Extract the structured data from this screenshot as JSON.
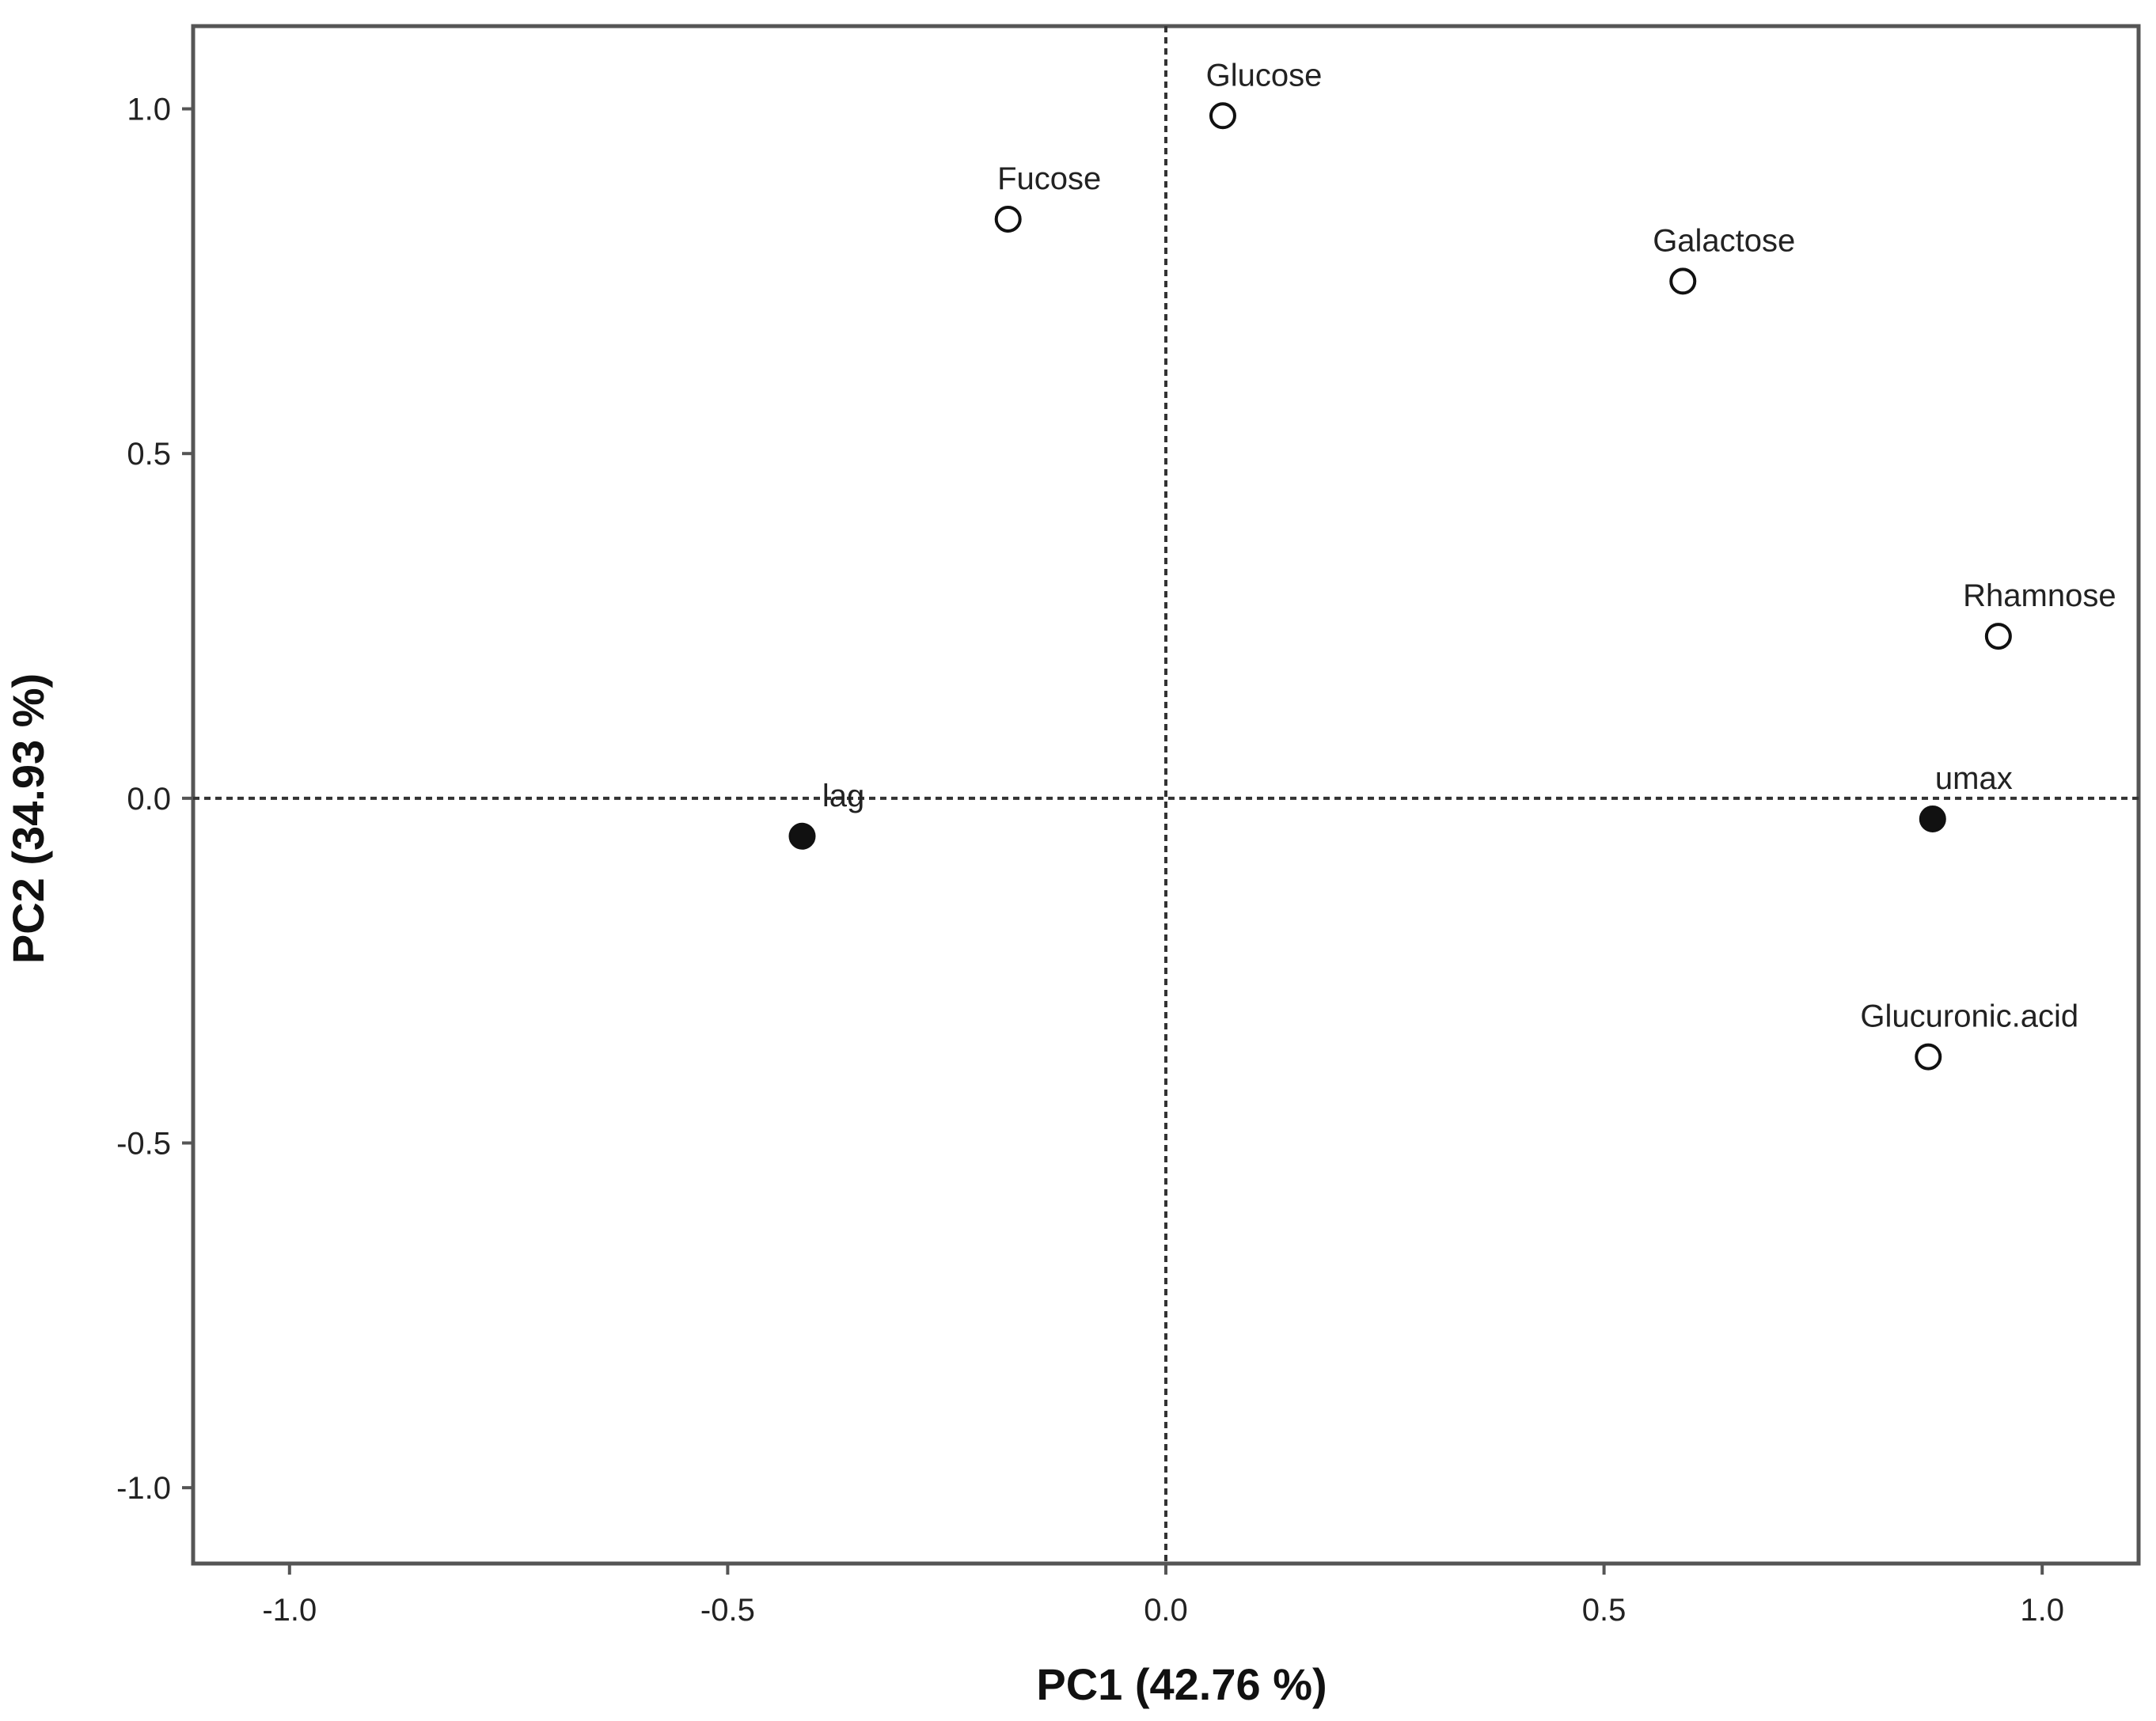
{
  "chart_data": {
    "type": "scatter",
    "title": "",
    "xlabel": "PC1 (42.76 %)",
    "ylabel": "PC2 (34.93 %)",
    "xlim": [
      -1.11,
      1.11
    ],
    "ylim": [
      -1.11,
      1.12
    ],
    "xticks": [
      -1.0,
      -0.5,
      0.0,
      0.5,
      1.0
    ],
    "yticks": [
      -1.0,
      -0.5,
      0.0,
      0.5,
      1.0
    ],
    "xtick_labels": [
      "-1.0",
      "-0.5",
      "0.0",
      "0.5",
      "1.0"
    ],
    "ytick_labels": [
      "-1.0",
      "-0.5",
      "0.0",
      "0.5",
      "1.0"
    ],
    "grid": false,
    "reference_lines": {
      "x": 0,
      "y": 0,
      "style": "dotted"
    },
    "points": [
      {
        "label": "Glucose",
        "x": 0.065,
        "y": 0.99,
        "marker": "open"
      },
      {
        "label": "Fucose",
        "x": -0.18,
        "y": 0.84,
        "marker": "open"
      },
      {
        "label": "Galactose",
        "x": 0.59,
        "y": 0.75,
        "marker": "open"
      },
      {
        "label": "Rhamnose",
        "x": 0.95,
        "y": 0.235,
        "marker": "open"
      },
      {
        "label": "umax",
        "x": 0.875,
        "y": -0.03,
        "marker": "filled"
      },
      {
        "label": "lag",
        "x": -0.415,
        "y": -0.055,
        "marker": "filled"
      },
      {
        "label": "Glucuronic.acid",
        "x": 0.87,
        "y": -0.375,
        "marker": "open"
      }
    ],
    "colors": {
      "frame": "#555555",
      "marker": "#111111",
      "reference_line": "#333333"
    }
  }
}
